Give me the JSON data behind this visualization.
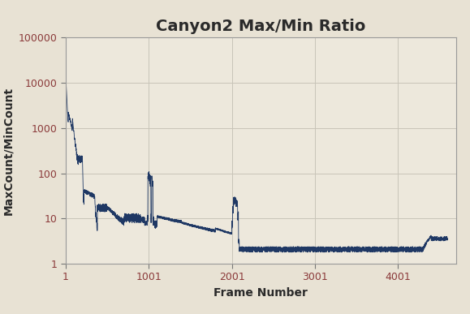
{
  "title": "Canyon2 Max/Min Ratio",
  "xlabel": "Frame Number",
  "ylabel": "MaxCount/MinCount",
  "plot_bg_color": "#ede8dc",
  "fig_bg_color": "#e8e2d4",
  "line_color": "#1F3864",
  "line_width": 0.6,
  "ylim_log": [
    1,
    100000
  ],
  "xlim": [
    1,
    4700
  ],
  "xticks": [
    1,
    1001,
    2001,
    3001,
    4001
  ],
  "yticks_log": [
    1,
    10,
    100,
    1000,
    10000,
    100000
  ],
  "grid_color": "#c8c4b8",
  "title_fontsize": 14,
  "label_fontsize": 10,
  "tick_fontsize": 9,
  "tick_color": "#8B3A3A",
  "label_color": "#2a2a2a"
}
